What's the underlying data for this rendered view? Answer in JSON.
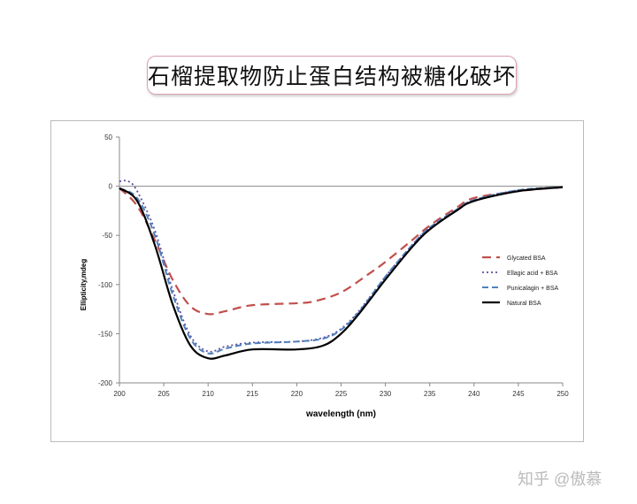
{
  "header": {
    "title": "石榴提取物防止蛋白结构被糖化破坏"
  },
  "watermark": "知乎 @傲慕",
  "chart_data": {
    "type": "line",
    "title": "",
    "xlabel": "wavelength (nm)",
    "ylabel": "Ellipticity,mdeg",
    "xlim": [
      200,
      250
    ],
    "ylim": [
      -200,
      50
    ],
    "xticks": [
      "200",
      "205",
      "210",
      "215",
      "220",
      "225",
      "230",
      "235",
      "240",
      "245",
      "250"
    ],
    "yticks": [
      "50",
      "0",
      "-50",
      "-100",
      "-150",
      "-200"
    ],
    "legend_position": "right",
    "series": [
      {
        "name": "Glycated BSA",
        "color": "#c0504d",
        "dash": "10,6",
        "width": 2.2,
        "x": [
          200,
          202,
          204,
          206,
          208,
          210,
          212,
          215,
          220,
          222,
          225,
          228,
          230,
          233,
          235,
          238,
          240,
          245,
          250
        ],
        "y": [
          -2,
          -20,
          -55,
          -95,
          -122,
          -130,
          -127,
          -121,
          -119,
          -117,
          -108,
          -90,
          -77,
          -55,
          -40,
          -22,
          -12,
          -5,
          -1
        ]
      },
      {
        "name": "Ellagic acid + BSA",
        "color": "#5b4ea0",
        "dash": "2,3",
        "width": 1.8,
        "x": [
          200,
          201,
          202,
          204,
          206,
          208,
          210,
          212,
          215,
          220,
          223,
          225,
          227,
          230,
          233,
          235,
          238,
          240,
          245,
          250
        ],
        "y": [
          5,
          5,
          -5,
          -45,
          -105,
          -152,
          -168,
          -163,
          -159,
          -158,
          -154,
          -145,
          -127,
          -92,
          -60,
          -42,
          -24,
          -14,
          -4,
          -1
        ]
      },
      {
        "name": "Punicalagin + BSA",
        "color": "#4f81bd",
        "dash": "7,4",
        "width": 2,
        "x": [
          200,
          202,
          204,
          206,
          208,
          210,
          212,
          215,
          220,
          223,
          225,
          227,
          230,
          233,
          235,
          238,
          240,
          245,
          250
        ],
        "y": [
          -2,
          -12,
          -50,
          -110,
          -155,
          -170,
          -165,
          -160,
          -158,
          -155,
          -146,
          -128,
          -92,
          -60,
          -42,
          -24,
          -14,
          -4,
          -1
        ]
      },
      {
        "name": "Natural BSA",
        "color": "#000000",
        "dash": "",
        "width": 2.2,
        "x": [
          200,
          202,
          204,
          206,
          208,
          210,
          212,
          215,
          220,
          223,
          225,
          227,
          230,
          233,
          235,
          238,
          240,
          245,
          250
        ],
        "y": [
          -2,
          -15,
          -60,
          -120,
          -162,
          -175,
          -172,
          -166,
          -166,
          -162,
          -150,
          -130,
          -95,
          -62,
          -44,
          -25,
          -15,
          -5,
          -1
        ]
      }
    ]
  }
}
